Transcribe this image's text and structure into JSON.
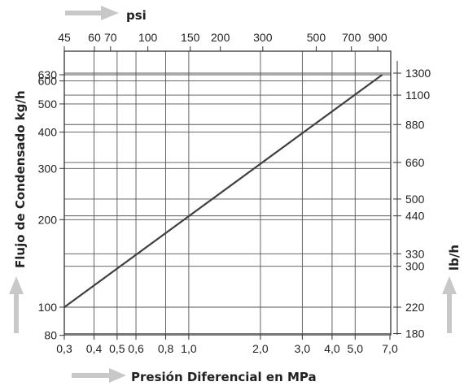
{
  "chart_data": {
    "type": "line",
    "title": "",
    "x_axis_bottom": {
      "label": "Presión Diferencial en MPa",
      "scale": "log",
      "range": [
        0.3,
        7.0
      ],
      "ticks": [
        0.3,
        0.4,
        0.5,
        0.6,
        0.8,
        1.0,
        2.0,
        3.0,
        4.0,
        5.0,
        7.0
      ],
      "tick_labels": [
        "0,3",
        "0,4",
        "0,5",
        "0,6",
        "0,8",
        "1,0",
        "2,0",
        "3,0",
        "4,0",
        "5,0",
        "7,0"
      ]
    },
    "x_axis_top": {
      "label": "psi",
      "scale": "log",
      "ticks": [
        45,
        60,
        70,
        100,
        150,
        200,
        300,
        500,
        700,
        900
      ],
      "tick_labels": [
        "45",
        "60",
        "70",
        "100",
        "150",
        "200",
        "300",
        "500",
        "700",
        "900"
      ]
    },
    "y_axis_left": {
      "label": "Flujo de Condensado kg/h",
      "scale": "log",
      "range": [
        80,
        630
      ],
      "ticks": [
        80,
        100,
        200,
        300,
        400,
        500,
        600,
        630
      ],
      "tick_labels": [
        "80",
        "100",
        "200",
        "300",
        "400",
        "500",
        "600",
        "630"
      ]
    },
    "y_axis_right": {
      "label": "lb/h",
      "scale": "log",
      "ticks": [
        180,
        220,
        300,
        330,
        440,
        500,
        660,
        880,
        1100,
        1300
      ],
      "tick_labels": [
        "180",
        "220",
        "300",
        "330",
        "440",
        "500",
        "660",
        "880",
        "1100",
        "1300"
      ]
    },
    "grid": true,
    "series": [
      {
        "x": [
          0.3,
          6.5
        ],
        "y": [
          100,
          630
        ]
      }
    ],
    "colors": {
      "line": "#404040",
      "grid": "#555555",
      "axis": "#333333",
      "arrow": "#c8c8c8"
    }
  }
}
